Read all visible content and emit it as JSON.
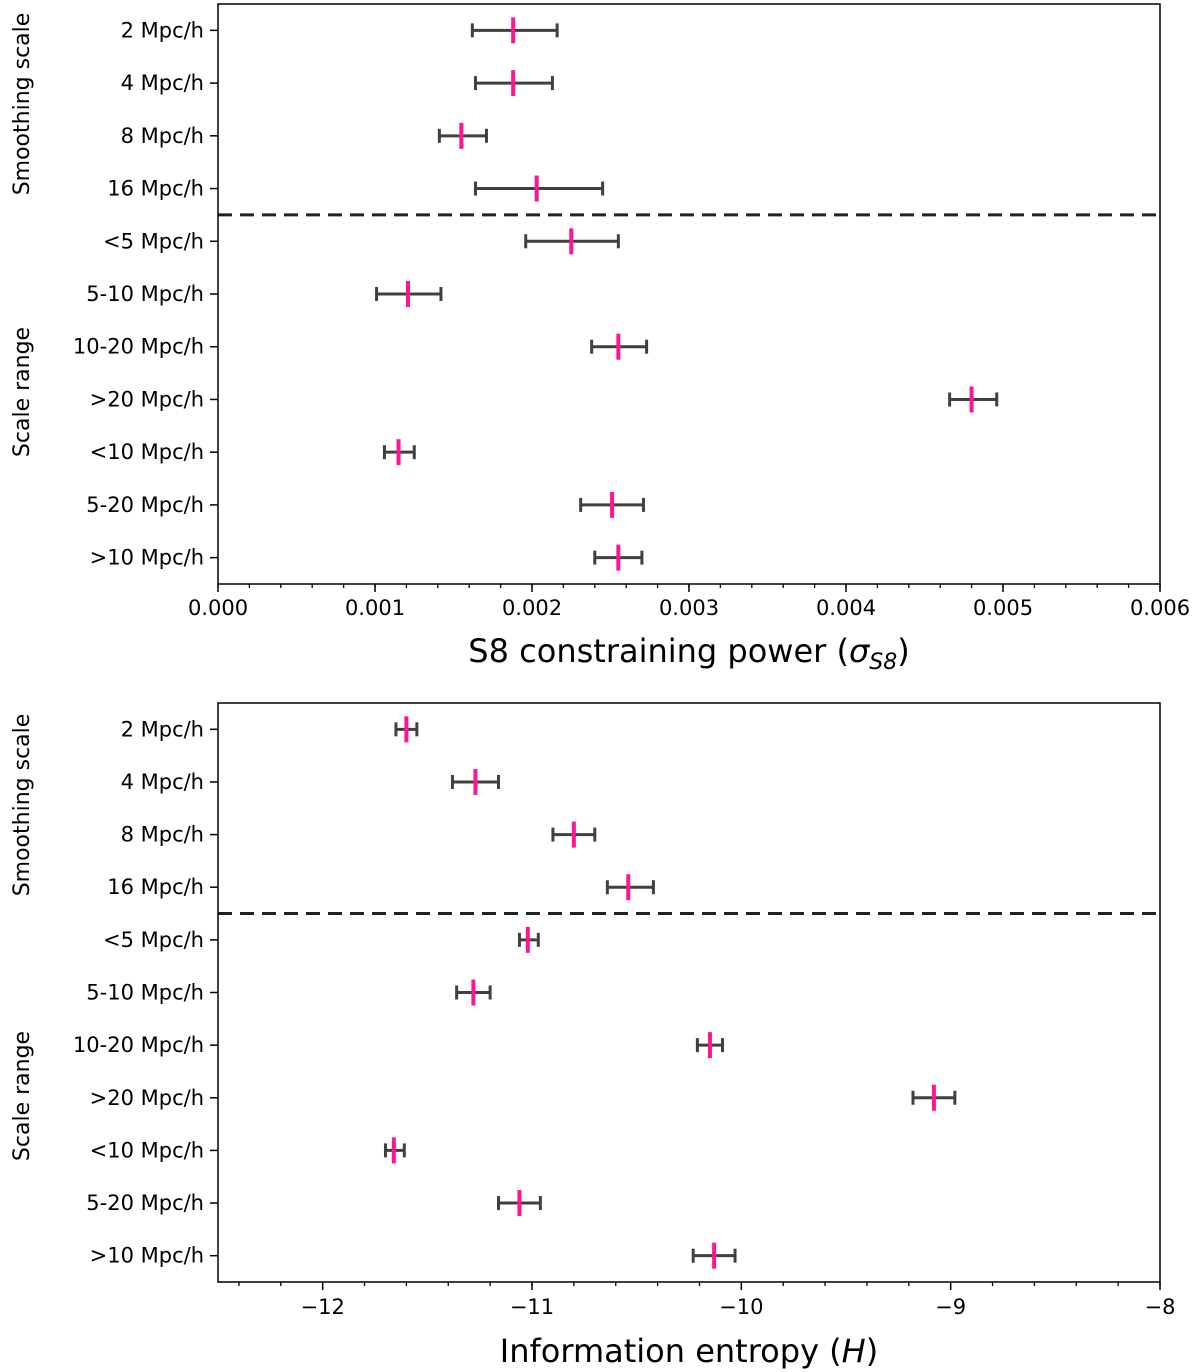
{
  "chart_data": [
    {
      "type": "errorbar",
      "orientation": "horizontal",
      "categories": [
        "2 Mpc/h",
        "4 Mpc/h",
        "8 Mpc/h",
        "16 Mpc/h",
        "<5 Mpc/h",
        "5-10 Mpc/h",
        "10-20 Mpc/h",
        ">20 Mpc/h",
        "<10 Mpc/h",
        "5-20 Mpc/h",
        ">10 Mpc/h"
      ],
      "values": [
        0.00188,
        0.00188,
        0.00155,
        0.00203,
        0.00225,
        0.00121,
        0.00255,
        0.0048,
        0.00115,
        0.00251,
        0.00255
      ],
      "err_low": [
        0.00162,
        0.00164,
        0.00141,
        0.00164,
        0.00196,
        0.00101,
        0.00238,
        0.00466,
        0.00106,
        0.00231,
        0.0024
      ],
      "err_high": [
        0.00216,
        0.00213,
        0.00171,
        0.00245,
        0.00255,
        0.00142,
        0.00273,
        0.00496,
        0.00125,
        0.00271,
        0.0027
      ],
      "xlabel": "S8 constraining power (",
      "xlabel_symbol": "σ",
      "xlabel_sub": "S8",
      "xlabel_tail": ")",
      "xlim": [
        0.0,
        0.006
      ],
      "xticks": [
        0.0,
        0.001,
        0.002,
        0.003,
        0.004,
        0.005,
        0.006
      ],
      "xtick_labels": [
        "0.000",
        "0.001",
        "0.002",
        "0.003",
        "0.004",
        "0.005",
        "0.006"
      ],
      "group_labels": [
        "Smoothing scale",
        "Scale range"
      ],
      "divider_after_index": 3,
      "colors": {
        "marker": "#ff1493",
        "errorbar": "#404040",
        "divider": "#222222"
      }
    },
    {
      "type": "errorbar",
      "orientation": "horizontal",
      "categories": [
        "2 Mpc/h",
        "4 Mpc/h",
        "8 Mpc/h",
        "16 Mpc/h",
        "<5 Mpc/h",
        "5-10 Mpc/h",
        "10-20 Mpc/h",
        ">20 Mpc/h",
        "<10 Mpc/h",
        "5-20 Mpc/h",
        ">10 Mpc/h"
      ],
      "values": [
        -11.6,
        -11.27,
        -10.8,
        -10.54,
        -11.02,
        -11.28,
        -10.15,
        -9.08,
        -11.66,
        -11.06,
        -10.13
      ],
      "err_low": [
        -11.65,
        -11.38,
        -10.9,
        -10.64,
        -11.06,
        -11.36,
        -10.21,
        -9.18,
        -11.7,
        -11.16,
        -10.23
      ],
      "err_high": [
        -11.55,
        -11.16,
        -10.7,
        -10.42,
        -10.97,
        -11.2,
        -10.09,
        -8.98,
        -11.61,
        -10.96,
        -10.03
      ],
      "xlabel": "Information entropy (",
      "xlabel_symbol": "H",
      "xlabel_sub": "",
      "xlabel_tail": ")",
      "xlim": [
        -12.5,
        -8.0
      ],
      "xticks": [
        -12,
        -11,
        -10,
        -9,
        -8
      ],
      "xtick_labels": [
        "−12",
        "−11",
        "−10",
        "−9",
        "−8"
      ],
      "group_labels": [
        "Smoothing scale",
        "Scale range"
      ],
      "divider_after_index": 3,
      "colors": {
        "marker": "#ff1493",
        "errorbar": "#404040",
        "divider": "#222222"
      }
    }
  ]
}
